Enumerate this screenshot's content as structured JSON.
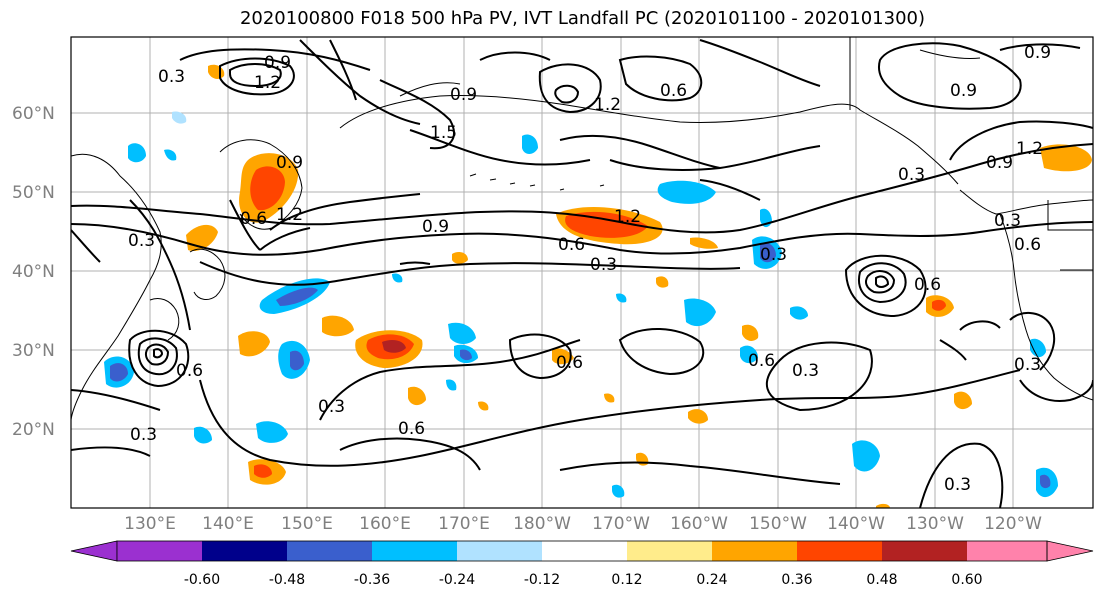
{
  "title": "2020100800 F018 500 hPa PV, IVT Landfall PC (2020101100 - 2020101300)",
  "lat_labels": [
    "60°N",
    "50°N",
    "40°N",
    "30°N",
    "20°N"
  ],
  "lon_labels": [
    "130°E",
    "140°E",
    "150°E",
    "160°E",
    "170°E",
    "180°W",
    "170°W",
    "160°W",
    "150°W",
    "140°W",
    "130°W",
    "120°W"
  ],
  "colorbar": {
    "colors": [
      "#9b30d0",
      "#00008b",
      "#3a5fcd",
      "#00bfff",
      "#b0e2ff",
      "#ffffff",
      "#ffec8b",
      "#ffa500",
      "#ff4500",
      "#b22222",
      "#ff82ab"
    ],
    "tick_labels": [
      "-0.60",
      "-0.48",
      "-0.36",
      "-0.24",
      "-0.12",
      "0.12",
      "0.24",
      "0.36",
      "0.48",
      "0.60"
    ]
  },
  "contour_labels": [
    {
      "text": "0.3"
    },
    {
      "text": "0.9"
    },
    {
      "text": "1.2"
    },
    {
      "text": "1.5"
    },
    {
      "text": "0.9"
    },
    {
      "text": "1.2"
    },
    {
      "text": "0.6"
    },
    {
      "text": "0.9"
    },
    {
      "text": "0.9"
    },
    {
      "text": "1.2"
    },
    {
      "text": "0.9"
    },
    {
      "text": "0.3"
    },
    {
      "text": "1.2"
    },
    {
      "text": "0.9"
    },
    {
      "text": "1.2"
    },
    {
      "text": "0.6"
    },
    {
      "text": "0.3"
    },
    {
      "text": "0.3"
    },
    {
      "text": "0.6"
    },
    {
      "text": "0.9"
    },
    {
      "text": "0.3"
    },
    {
      "text": "0.6"
    },
    {
      "text": "0.3"
    },
    {
      "text": "0.6"
    },
    {
      "text": "0.3"
    },
    {
      "text": "0.6"
    },
    {
      "text": "0.3"
    },
    {
      "text": "0.6"
    },
    {
      "text": "0.3"
    },
    {
      "text": "0.3"
    },
    {
      "text": "0.3"
    },
    {
      "text": "0.6"
    },
    {
      "text": "0.6"
    }
  ]
}
